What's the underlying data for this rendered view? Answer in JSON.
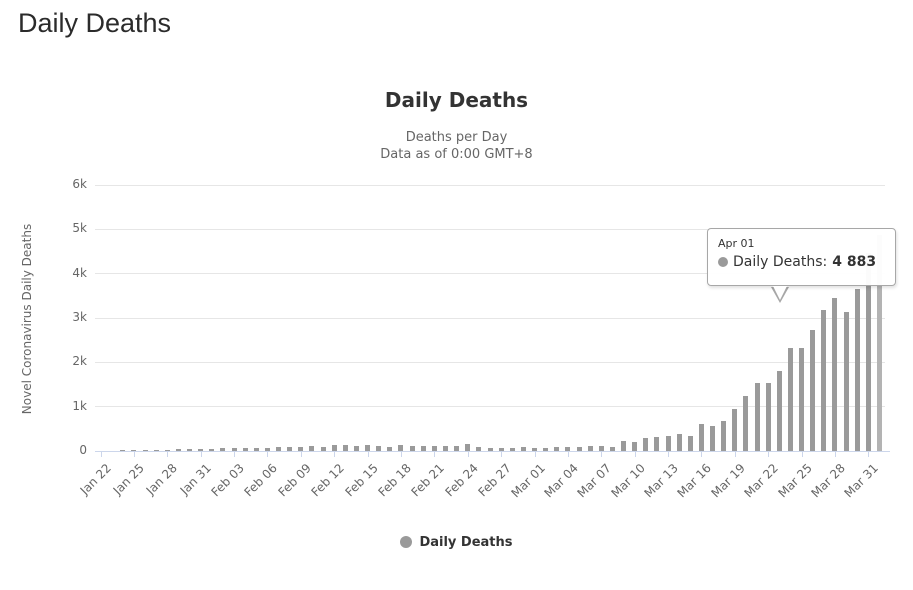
{
  "page": {
    "title": "Daily Deaths"
  },
  "chart": {
    "title": "Daily Deaths",
    "subtitle_line1": "Deaths per Day",
    "subtitle_line2": "Data as of 0:00 GMT+8",
    "y_axis_title": "Novel Coronavirus Daily Deaths",
    "legend_label": "Daily Deaths",
    "colors": {
      "bar": "#9a9a9a",
      "bar_hover": "#b3b3b3",
      "gridline": "#e6e6e6",
      "axis_line": "#ccd6eb",
      "axis_text": "#666666",
      "title_text": "#333333"
    }
  },
  "tooltip": {
    "header": "Apr 01",
    "series_label": "Daily Deaths:",
    "value": "4 883",
    "marker_color": "#9a9a9a"
  },
  "chart_data": {
    "type": "bar",
    "title": "Daily Deaths",
    "subtitle": [
      "Deaths per Day",
      "Data as of 0:00 GMT+8"
    ],
    "xlabel": "",
    "ylabel": "Novel Coronavirus Daily Deaths",
    "ylim": [
      0,
      6000
    ],
    "ytick_values": [
      0,
      1000,
      2000,
      3000,
      4000,
      5000,
      6000
    ],
    "ytick_labels": [
      "0",
      "1k",
      "2k",
      "3k",
      "4k",
      "5k",
      "6k"
    ],
    "x_label_every": 3,
    "grid": true,
    "legend": [
      "Daily Deaths"
    ],
    "legend_position": "bottom",
    "hovered_point": {
      "category": "Apr 01",
      "value": 4883,
      "display": "4 883"
    },
    "categories": [
      "Jan 22",
      "Jan 23",
      "Jan 24",
      "Jan 25",
      "Jan 26",
      "Jan 27",
      "Jan 28",
      "Jan 29",
      "Jan 30",
      "Jan 31",
      "Feb 01",
      "Feb 02",
      "Feb 03",
      "Feb 04",
      "Feb 05",
      "Feb 06",
      "Feb 07",
      "Feb 08",
      "Feb 09",
      "Feb 10",
      "Feb 11",
      "Feb 12",
      "Feb 13",
      "Feb 14",
      "Feb 15",
      "Feb 16",
      "Feb 17",
      "Feb 18",
      "Feb 19",
      "Feb 20",
      "Feb 21",
      "Feb 22",
      "Feb 23",
      "Feb 24",
      "Feb 25",
      "Feb 26",
      "Feb 27",
      "Feb 28",
      "Feb 29",
      "Mar 01",
      "Mar 02",
      "Mar 03",
      "Mar 04",
      "Mar 05",
      "Mar 06",
      "Mar 07",
      "Mar 08",
      "Mar 09",
      "Mar 10",
      "Mar 11",
      "Mar 12",
      "Mar 13",
      "Mar 14",
      "Mar 15",
      "Mar 16",
      "Mar 17",
      "Mar 18",
      "Mar 19",
      "Mar 20",
      "Mar 21",
      "Mar 22",
      "Mar 23",
      "Mar 24",
      "Mar 25",
      "Mar 26",
      "Mar 27",
      "Mar 28",
      "Mar 29",
      "Mar 30",
      "Mar 31",
      "Apr 01"
    ],
    "values": [
      0,
      8,
      16,
      15,
      24,
      26,
      26,
      38,
      43,
      46,
      45,
      58,
      64,
      66,
      72,
      73,
      86,
      89,
      97,
      108,
      97,
      125,
      145,
      122,
      143,
      110,
      98,
      136,
      117,
      121,
      112,
      118,
      109,
      150,
      80,
      67,
      63,
      58,
      81,
      67,
      73,
      85,
      86,
      99,
      106,
      105,
      98,
      225,
      205,
      290,
      315,
      342,
      373,
      335,
      600,
      565,
      676,
      951,
      1250,
      1540,
      1530,
      1810,
      2320,
      2320,
      2740,
      3180,
      3450,
      3130,
      3650,
      4470,
      4883
    ]
  }
}
